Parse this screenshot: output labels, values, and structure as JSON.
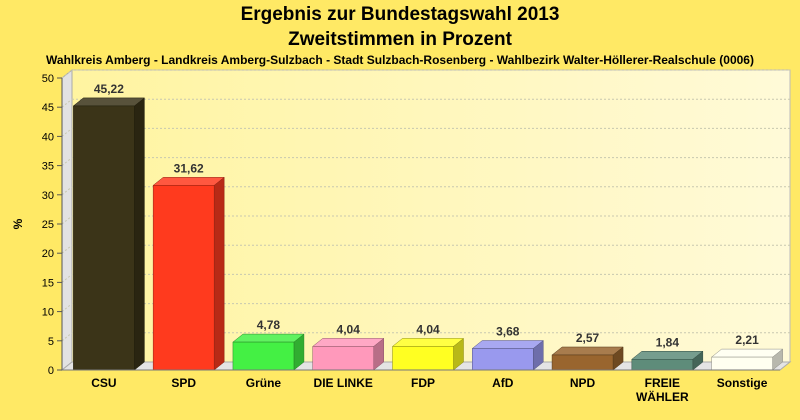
{
  "chart_data": {
    "type": "bar",
    "title": "Ergebnis zur Bundestagswahl 2013",
    "title2": "Zweitstimmen in Prozent",
    "subtitle": "Wahlkreis Amberg - Landkreis Amberg-Sulzbach - Stadt Sulzbach-Rosenberg - Wahlbezirk Walter-Höllerer-Realschule (0006)",
    "ylabel": "%",
    "xlabel": "",
    "ylim": [
      0,
      50
    ],
    "yticks": [
      "0",
      "5",
      "10",
      "15",
      "20",
      "25",
      "30",
      "35",
      "40",
      "45",
      "50"
    ],
    "grid": "horizontal",
    "categories": [
      "CSU",
      "SPD",
      "Grüne",
      "DIE LINKE",
      "FDP",
      "AfD",
      "NPD",
      "FREIE WÄHLER",
      "Sonstige"
    ],
    "values": [
      45.22,
      31.62,
      4.78,
      4.04,
      4.04,
      3.68,
      2.57,
      1.84,
      2.21
    ],
    "value_labels": [
      "45,22",
      "31,62",
      "4,78",
      "4,04",
      "4,04",
      "3,68",
      "2,57",
      "1,84",
      "2,21"
    ],
    "colors": [
      "#3B3418",
      "#FF3A1E",
      "#44F044",
      "#FF99BB",
      "#FFFF22",
      "#9999EE",
      "#99652E",
      "#5E8C7A",
      "#FFFFF0"
    ],
    "background": "#FFE965"
  }
}
